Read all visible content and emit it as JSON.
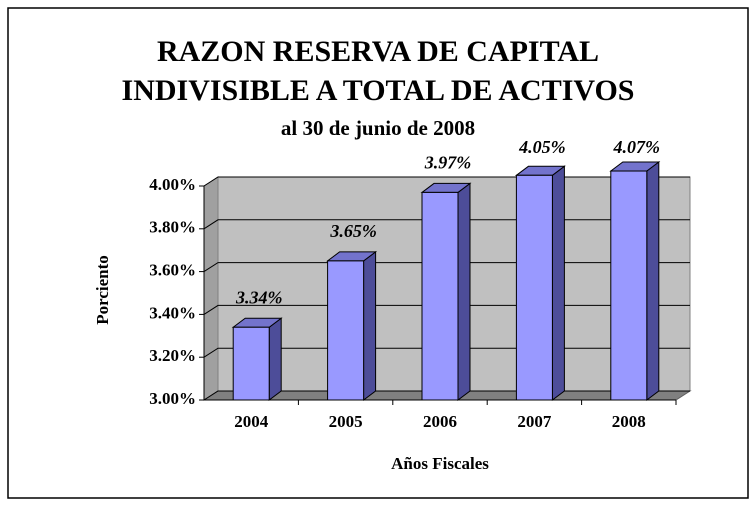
{
  "chart_data": {
    "type": "bar",
    "title": [
      "RAZON RESERVA DE CAPITAL",
      "INDIVISIBLE A TOTAL DE ACTIVOS"
    ],
    "subtitle": "al 30 de junio de 2008",
    "x_label": "Años Fiscales",
    "y_label": "Porciento",
    "categories": [
      "2004",
      "2005",
      "2006",
      "2007",
      "2008"
    ],
    "values": [
      3.34,
      3.65,
      3.97,
      4.05,
      4.07
    ],
    "value_labels": [
      "3.34%",
      "3.65%",
      "3.97%",
      "4.05%",
      "4.07%"
    ],
    "color": "#9999ff",
    "ylim": [
      3,
      4
    ],
    "yticks": [
      {
        "value": 3,
        "label": "3.00%"
      },
      {
        "value": 3.2,
        "label": "3.20%"
      },
      {
        "value": 3.4,
        "label": "3.40%"
      },
      {
        "value": 3.6,
        "label": "3.60%"
      },
      {
        "value": 3.8,
        "label": "3.80%"
      },
      {
        "value": 4,
        "label": "4.00%"
      }
    ],
    "grid": true
  }
}
